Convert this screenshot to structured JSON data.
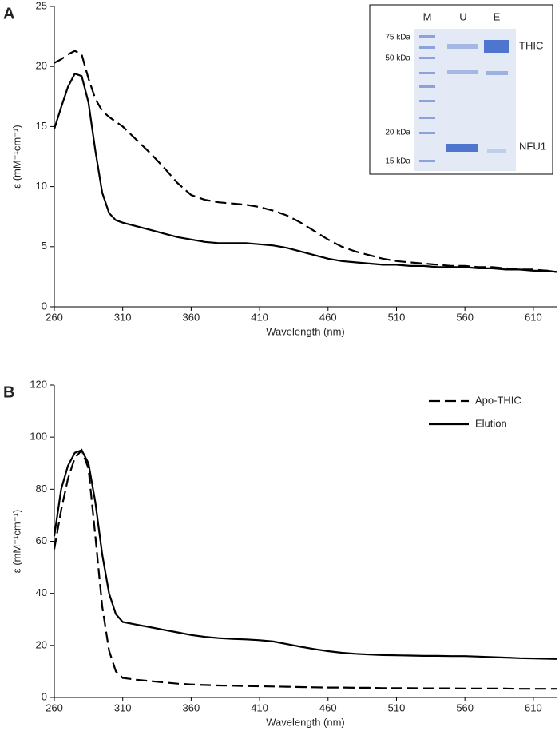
{
  "chart_data": [
    {
      "type": "line",
      "panel_label": "A",
      "xlabel": "Wavelength (nm)",
      "ylabel": "ε (mM⁻¹cm⁻¹)",
      "xlim": [
        260,
        627
      ],
      "xticks": [
        260,
        310,
        360,
        410,
        460,
        510,
        560,
        610
      ],
      "ylim": [
        0,
        25
      ],
      "yticks": [
        0,
        5,
        10,
        15,
        20,
        25
      ],
      "x": [
        260,
        265,
        270,
        275,
        280,
        285,
        290,
        295,
        300,
        305,
        310,
        320,
        330,
        340,
        350,
        360,
        370,
        380,
        390,
        400,
        410,
        420,
        430,
        440,
        450,
        460,
        470,
        480,
        490,
        500,
        510,
        520,
        530,
        540,
        550,
        560,
        570,
        580,
        590,
        600,
        610,
        620,
        627
      ],
      "series": [
        {
          "color": "#000000",
          "style": "dashed",
          "values": [
            20.3,
            20.6,
            21.0,
            21.3,
            21.0,
            19.0,
            17.3,
            16.3,
            15.8,
            15.4,
            15.0,
            13.9,
            12.8,
            11.6,
            10.3,
            9.3,
            8.9,
            8.7,
            8.6,
            8.5,
            8.3,
            8.0,
            7.6,
            7.0,
            6.3,
            5.6,
            5.0,
            4.6,
            4.3,
            4.0,
            3.8,
            3.7,
            3.6,
            3.5,
            3.4,
            3.4,
            3.3,
            3.3,
            3.2,
            3.1,
            3.1,
            3.0,
            2.9
          ]
        },
        {
          "color": "#000000",
          "style": "solid",
          "values": [
            14.8,
            16.6,
            18.3,
            19.4,
            19.2,
            17.0,
            13.0,
            9.5,
            7.8,
            7.2,
            7.0,
            6.7,
            6.4,
            6.1,
            5.8,
            5.6,
            5.4,
            5.3,
            5.3,
            5.3,
            5.2,
            5.1,
            4.9,
            4.6,
            4.3,
            4.0,
            3.8,
            3.7,
            3.6,
            3.5,
            3.5,
            3.4,
            3.4,
            3.3,
            3.3,
            3.3,
            3.2,
            3.2,
            3.1,
            3.1,
            3.0,
            3.0,
            2.9
          ]
        }
      ],
      "inset": {
        "lanes": [
          "M",
          "U",
          "E"
        ],
        "markers": [
          "75 kDa",
          "50 kDa",
          "20 kDa",
          "15 kDa"
        ],
        "bands": [
          "THIC",
          "NFU1"
        ]
      }
    },
    {
      "type": "line",
      "panel_label": "B",
      "xlabel": "Wavelength (nm)",
      "ylabel": "ε (mM⁻¹cm⁻¹)",
      "xlim": [
        260,
        627
      ],
      "xticks": [
        260,
        310,
        360,
        410,
        460,
        510,
        560,
        610
      ],
      "ylim": [
        0,
        120
      ],
      "yticks": [
        0,
        20,
        40,
        60,
        80,
        100,
        120
      ],
      "legend": "upper right",
      "x": [
        260,
        265,
        270,
        275,
        280,
        285,
        290,
        295,
        300,
        305,
        310,
        320,
        330,
        340,
        350,
        360,
        370,
        380,
        390,
        400,
        410,
        420,
        430,
        440,
        450,
        460,
        470,
        480,
        490,
        500,
        510,
        520,
        530,
        540,
        550,
        560,
        570,
        580,
        590,
        600,
        610,
        620,
        627
      ],
      "series": [
        {
          "name": "Apo-THIC",
          "color": "#000000",
          "style": "dashed",
          "values": [
            57,
            72,
            84,
            92,
            95,
            88,
            62,
            35,
            18,
            10,
            7.5,
            6.8,
            6.3,
            5.8,
            5.3,
            5.0,
            4.8,
            4.6,
            4.5,
            4.4,
            4.3,
            4.2,
            4.1,
            4.0,
            3.9,
            3.8,
            3.8,
            3.7,
            3.7,
            3.6,
            3.6,
            3.6,
            3.5,
            3.5,
            3.5,
            3.4,
            3.4,
            3.4,
            3.4,
            3.3,
            3.3,
            3.3,
            3.3
          ]
        },
        {
          "name": "Elution",
          "color": "#000000",
          "style": "solid",
          "values": [
            62,
            80,
            89,
            94,
            95,
            90,
            75,
            55,
            40,
            32,
            29,
            28,
            27,
            26,
            25,
            24,
            23.3,
            22.8,
            22.5,
            22.3,
            22.0,
            21.5,
            20.5,
            19.5,
            18.6,
            17.8,
            17.2,
            16.8,
            16.5,
            16.3,
            16.2,
            16.1,
            16.0,
            16.0,
            15.9,
            15.9,
            15.7,
            15.5,
            15.3,
            15.1,
            15.0,
            14.9,
            14.8
          ]
        }
      ]
    }
  ]
}
